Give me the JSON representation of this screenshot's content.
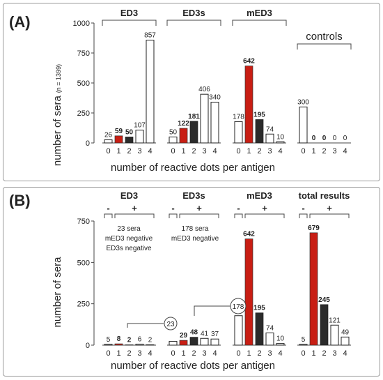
{
  "panels": [
    {
      "id": "A",
      "label": "(A)",
      "ylabel": "number of sera",
      "ylabel_sub": "(n = 1399)",
      "xlabel": "number of reactive dots per antigen",
      "yticks": [
        "0",
        "250",
        "500",
        "750",
        "1000"
      ]
    },
    {
      "id": "B",
      "label": "(B)",
      "ylabel": "number of sera",
      "xlabel": "number of reactive dots per antigen",
      "yticks": [
        "0",
        "250",
        "500",
        "750"
      ],
      "notes": {
        "ed3": [
          "23 sera",
          "mED3 negative",
          "ED3s negative"
        ],
        "ed3s": [
          "178 sera",
          "mED3 negative"
        ]
      },
      "circles": [
        "23",
        "178"
      ]
    }
  ],
  "chart_data": [
    {
      "type": "bar",
      "panel": "A",
      "ylim": [
        0,
        1000
      ],
      "grid": false,
      "groups": [
        {
          "name": "ED3",
          "categories": [
            "0",
            "1",
            "2",
            "3",
            "4"
          ],
          "values": [
            26,
            59,
            50,
            107,
            857
          ],
          "labels": [
            "26",
            "59",
            "50",
            "107",
            "857"
          ]
        },
        {
          "name": "ED3s",
          "categories": [
            "0",
            "1",
            "2",
            "3",
            "4"
          ],
          "values": [
            50,
            122,
            181,
            406,
            340
          ],
          "labels": [
            "50",
            "122",
            "181",
            "406",
            "340"
          ]
        },
        {
          "name": "mED3",
          "categories": [
            "0",
            "1",
            "2",
            "3",
            "4"
          ],
          "values": [
            178,
            642,
            195,
            74,
            10
          ],
          "labels": [
            "178",
            "642",
            "195",
            "74",
            "10"
          ]
        },
        {
          "name": "controls",
          "categories": [
            "0",
            "1",
            "2",
            "3",
            "4"
          ],
          "values": [
            300,
            0,
            0,
            0,
            0
          ],
          "labels": [
            "300",
            "0",
            "0",
            "0",
            "0"
          ]
        }
      ]
    },
    {
      "type": "bar",
      "panel": "B",
      "ylim": [
        0,
        750
      ],
      "grid": false,
      "groups": [
        {
          "name": "ED3",
          "categories": [
            "0",
            "1",
            "2",
            "3",
            "4"
          ],
          "values": [
            5,
            8,
            2,
            6,
            2
          ],
          "labels": [
            "5",
            "8",
            "2",
            "6",
            "2"
          ],
          "signs": [
            "-",
            "+"
          ]
        },
        {
          "name": "ED3s",
          "categories": [
            "0",
            "1",
            "2",
            "3",
            "4"
          ],
          "values": [
            23,
            29,
            48,
            41,
            37
          ],
          "labels": [
            "",
            "29",
            "48",
            "41",
            "37"
          ],
          "signs": [
            "-",
            "+"
          ]
        },
        {
          "name": "mED3",
          "categories": [
            "0",
            "1",
            "2",
            "3",
            "4"
          ],
          "values": [
            178,
            642,
            195,
            74,
            10
          ],
          "labels": [
            "",
            "642",
            "195",
            "74",
            "10"
          ],
          "signs": [
            "-",
            "+"
          ]
        },
        {
          "name": "total results",
          "categories": [
            "0",
            "1",
            "2",
            "3",
            "4"
          ],
          "values": [
            5,
            679,
            245,
            121,
            49
          ],
          "labels": [
            "5",
            "679",
            "245",
            "121",
            "49"
          ],
          "signs": [
            "-",
            "+"
          ]
        }
      ]
    }
  ]
}
